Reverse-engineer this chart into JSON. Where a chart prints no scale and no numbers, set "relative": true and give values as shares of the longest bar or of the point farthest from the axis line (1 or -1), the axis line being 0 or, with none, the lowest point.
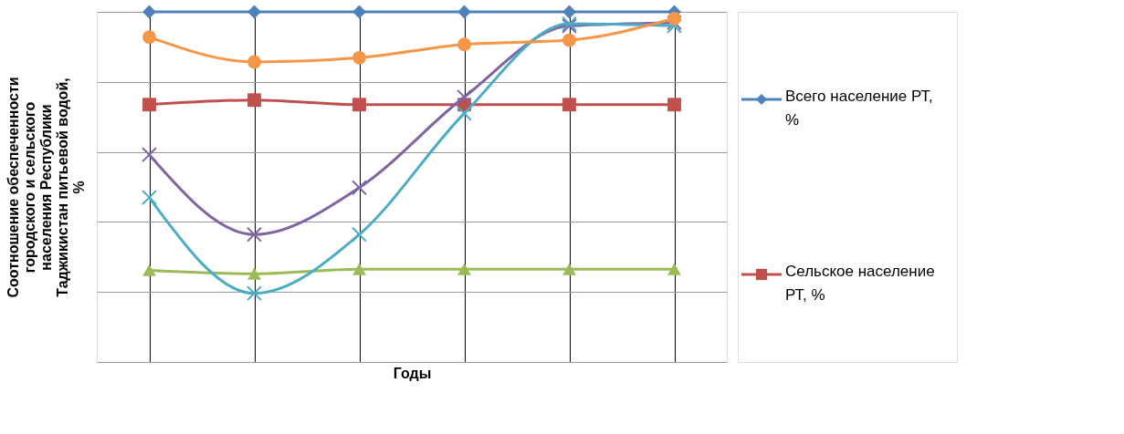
{
  "chart_data": {
    "type": "line",
    "relative": true,
    "xlabel": "Годы",
    "ylabel": "Соотношение обеспеченности городского и сельского населения Республики Таджикистан питьевой водой, %",
    "categories": [
      null,
      null,
      null,
      null,
      null,
      null
    ],
    "series": [
      {
        "name": "Всего население РТ, %",
        "color": "#4f81bd",
        "marker": "diamond",
        "values": [
          1.0,
          1.0,
          1.0,
          1.0,
          1.0,
          1.0
        ]
      },
      {
        "name": "Сельское население РТ, %",
        "color": "#c0504d",
        "marker": "square",
        "values": [
          0.735,
          0.748,
          0.735,
          0.735,
          0.735,
          0.735
        ]
      },
      {
        "color": "#9bbb59",
        "marker": "triangle",
        "values": [
          0.262,
          0.252,
          0.265,
          0.265,
          0.265,
          0.265
        ]
      },
      {
        "color": "#8064a2",
        "marker": "cross",
        "values": [
          0.592,
          0.364,
          0.498,
          0.757,
          0.96,
          0.969
        ]
      },
      {
        "color": "#4bacc6",
        "marker": "cross",
        "values": [
          0.47,
          0.196,
          0.364,
          0.71,
          0.966,
          0.96
        ]
      },
      {
        "color": "#f79646",
        "marker": "circle",
        "values": [
          0.928,
          0.857,
          0.869,
          0.907,
          0.919,
          0.981
        ]
      }
    ],
    "grid": true,
    "legend": "right",
    "tick_labels": false,
    "line_style": "solid"
  }
}
